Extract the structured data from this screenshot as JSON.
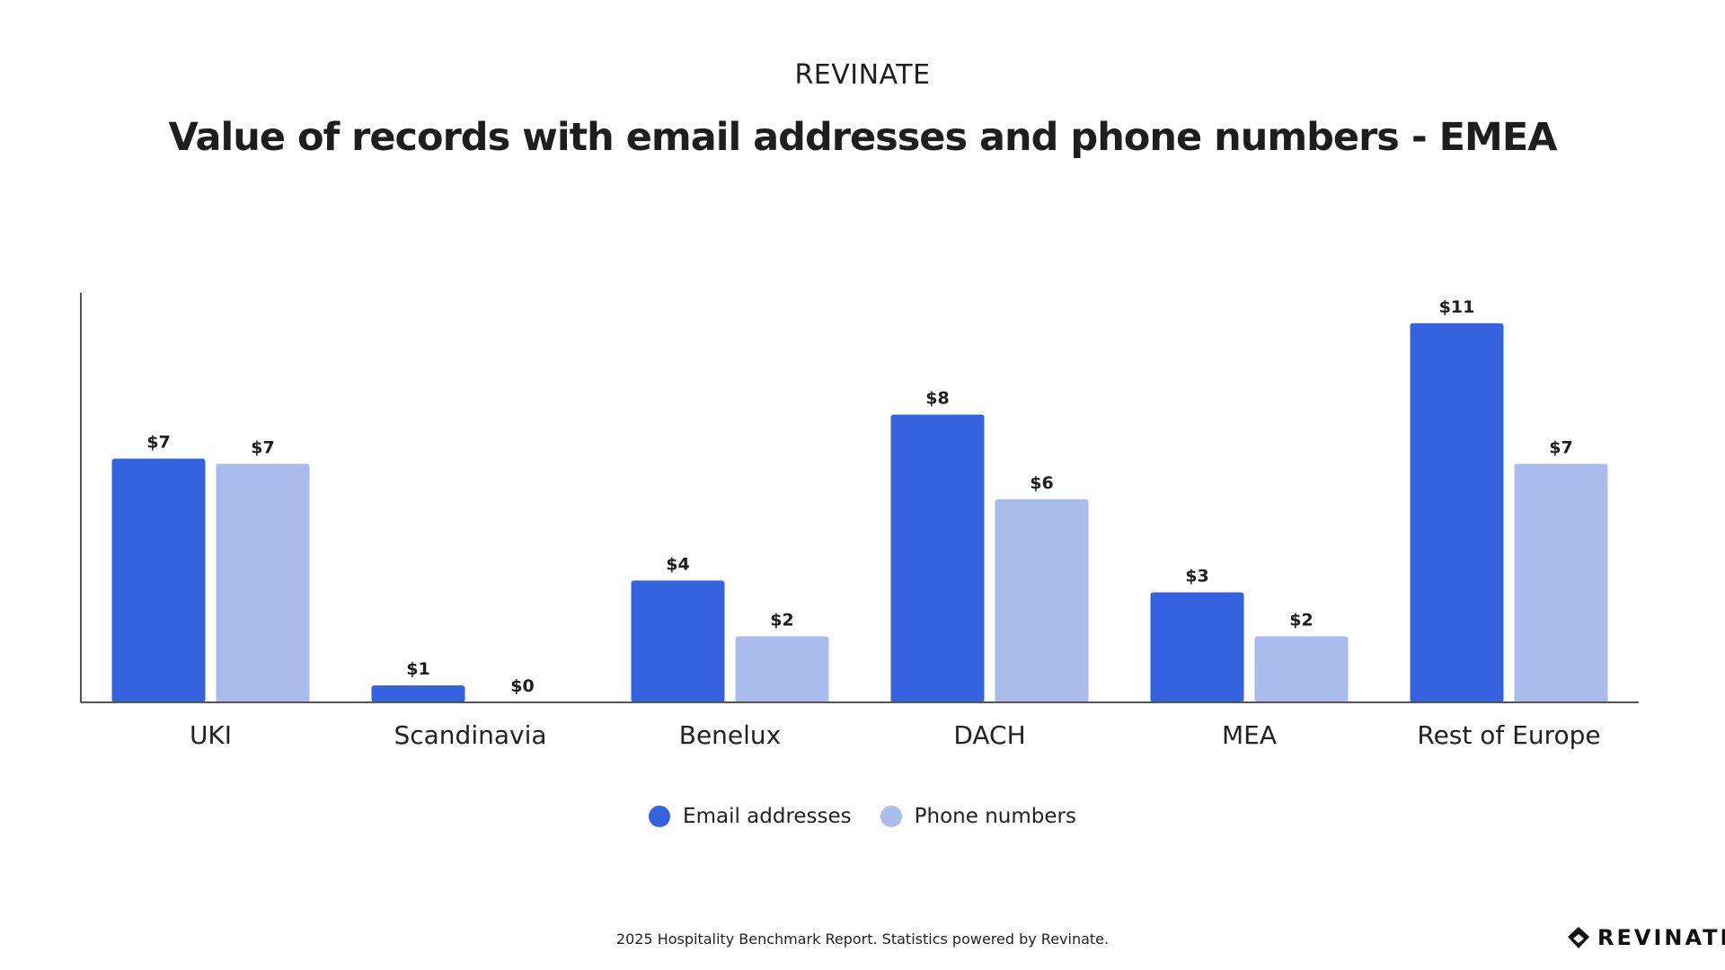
{
  "header": {
    "brand": "REVINATE",
    "title": "Value of records with email addresses and phone numbers  - EMEA"
  },
  "chart_data": {
    "type": "bar",
    "categories": [
      "UKI",
      "Scandinavia",
      "Benelux",
      "DACH",
      "MEA",
      "Rest of Europe"
    ],
    "series": [
      {
        "name": "Email addresses",
        "color": "#3563E0",
        "values": [
          7.2,
          0.5,
          3.6,
          8.5,
          3.25,
          11.2
        ],
        "labels": [
          "$7",
          "$1",
          "$4",
          "$8",
          "$3",
          "$11"
        ]
      },
      {
        "name": "Phone numbers",
        "color": "#AABCEB",
        "values": [
          7.05,
          0,
          1.95,
          6.0,
          1.95,
          7.05
        ],
        "labels": [
          "$7",
          "$0",
          "$2",
          "$6",
          "$2",
          "$7"
        ]
      }
    ],
    "ylim": [
      0,
      12.1
    ],
    "grid": false,
    "legend_position": "bottom-center"
  },
  "footer": {
    "note": "2025 Hospitality Benchmark Report. Statistics powered by Revinate.",
    "logo_text": "REVINATE"
  }
}
